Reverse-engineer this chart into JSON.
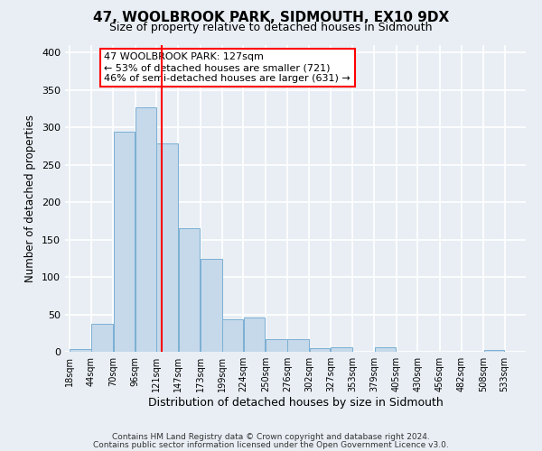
{
  "title": "47, WOOLBROOK PARK, SIDMOUTH, EX10 9DX",
  "subtitle": "Size of property relative to detached houses in Sidmouth",
  "xlabel": "Distribution of detached houses by size in Sidmouth",
  "ylabel": "Number of detached properties",
  "bar_left_edges": [
    18,
    44,
    70,
    96,
    121,
    147,
    173,
    199,
    224,
    250,
    276,
    302,
    327,
    353,
    379,
    405,
    430,
    456,
    482,
    508
  ],
  "bar_widths": [
    26,
    26,
    26,
    25,
    26,
    26,
    26,
    25,
    26,
    26,
    26,
    25,
    26,
    26,
    26,
    25,
    26,
    26,
    26,
    25
  ],
  "bar_heights": [
    4,
    37,
    294,
    327,
    278,
    165,
    124,
    43,
    46,
    17,
    17,
    5,
    6,
    0,
    6,
    0,
    0,
    0,
    0,
    3
  ],
  "bar_color": "#c5d9ea",
  "bar_edgecolor": "#7bafd4",
  "xtick_labels": [
    "18sqm",
    "44sqm",
    "70sqm",
    "96sqm",
    "121sqm",
    "147sqm",
    "173sqm",
    "199sqm",
    "224sqm",
    "250sqm",
    "276sqm",
    "302sqm",
    "327sqm",
    "353sqm",
    "379sqm",
    "405sqm",
    "430sqm",
    "456sqm",
    "482sqm",
    "508sqm",
    "533sqm"
  ],
  "xtick_positions": [
    18,
    44,
    70,
    96,
    121,
    147,
    173,
    199,
    224,
    250,
    276,
    302,
    327,
    353,
    379,
    405,
    430,
    456,
    482,
    508,
    533
  ],
  "ylim": [
    0,
    410
  ],
  "yticks": [
    0,
    50,
    100,
    150,
    200,
    250,
    300,
    350,
    400
  ],
  "red_line_x": 127,
  "annotation_title": "47 WOOLBROOK PARK: 127sqm",
  "annotation_line1": "← 53% of detached houses are smaller (721)",
  "annotation_line2": "46% of semi-detached houses are larger (631) →",
  "footnote1": "Contains HM Land Registry data © Crown copyright and database right 2024.",
  "footnote2": "Contains public sector information licensed under the Open Government Licence v3.0.",
  "background_color": "#e8eef4",
  "plot_background": "#e8eef4",
  "grid_color": "#ffffff"
}
